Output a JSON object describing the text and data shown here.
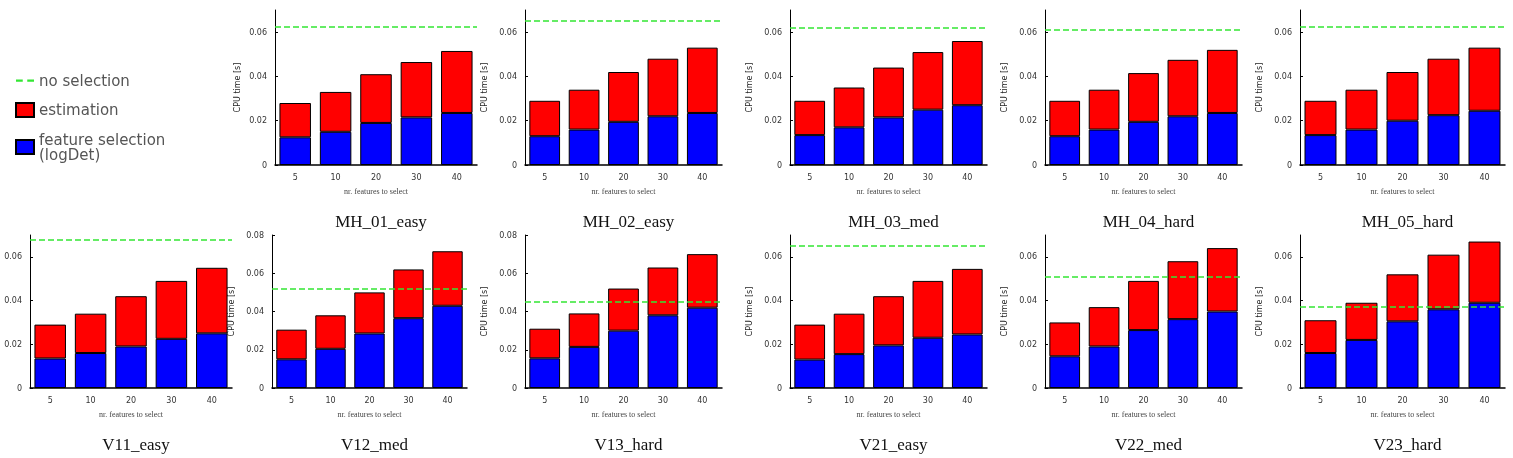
{
  "chart_data": [
    {
      "type": "bar",
      "title": "MH_01_easy",
      "xlabel": "nr. features to select",
      "ylabel": "CPU time [s]",
      "categories": [
        "5",
        "10",
        "20",
        "30",
        "40"
      ],
      "stacked": true,
      "legend": "left",
      "ylim": [
        0,
        0.07
      ],
      "yticks": [
        0,
        0.02,
        0.04,
        0.06
      ],
      "series": [
        {
          "name": "feature selection (logDet)",
          "color": "#0000ff",
          "values": [
            0.0125,
            0.015,
            0.019,
            0.0215,
            0.0235
          ]
        },
        {
          "name": "estimation",
          "color": "#ff0000",
          "values": [
            0.0155,
            0.018,
            0.022,
            0.025,
            0.028
          ]
        }
      ],
      "ref_lines": [
        {
          "axis": "y",
          "value": 0.0625,
          "label": "no selection",
          "color": "#33e633",
          "line_style": "dashed"
        }
      ]
    },
    {
      "type": "bar",
      "title": "MH_02_easy",
      "xlabel": "nr. features to select",
      "ylabel": "CPU time [s]",
      "categories": [
        "5",
        "10",
        "20",
        "30",
        "40"
      ],
      "stacked": true,
      "ylim": [
        0,
        0.07
      ],
      "yticks": [
        0,
        0.02,
        0.04,
        0.06
      ],
      "series": [
        {
          "color": "#0000ff",
          "values": [
            0.013,
            0.016,
            0.0195,
            0.022,
            0.0235
          ]
        },
        {
          "color": "#ff0000",
          "values": [
            0.016,
            0.018,
            0.0225,
            0.026,
            0.0295
          ]
        }
      ],
      "ref_lines": [
        {
          "axis": "y",
          "value": 0.065,
          "color": "#33e633",
          "line_style": "dashed"
        }
      ]
    },
    {
      "type": "bar",
      "title": "MH_03_med",
      "xlabel": "nr. features to select",
      "ylabel": "CPU time [s]",
      "categories": [
        "5",
        "10",
        "20",
        "30",
        "40"
      ],
      "stacked": true,
      "ylim": [
        0,
        0.07
      ],
      "yticks": [
        0,
        0.02,
        0.04,
        0.06
      ],
      "series": [
        {
          "color": "#0000ff",
          "values": [
            0.0135,
            0.017,
            0.0215,
            0.025,
            0.027
          ]
        },
        {
          "color": "#ff0000",
          "values": [
            0.0155,
            0.018,
            0.0225,
            0.026,
            0.029
          ]
        }
      ],
      "ref_lines": [
        {
          "axis": "y",
          "value": 0.062,
          "color": "#33e633",
          "line_style": "dashed"
        }
      ]
    },
    {
      "type": "bar",
      "title": "MH_04_hard",
      "xlabel": "nr. features to select",
      "ylabel": "CPU time [s]",
      "categories": [
        "5",
        "10",
        "20",
        "30",
        "40"
      ],
      "stacked": true,
      "ylim": [
        0,
        0.07
      ],
      "yticks": [
        0,
        0.02,
        0.04,
        0.06
      ],
      "series": [
        {
          "color": "#0000ff",
          "values": [
            0.013,
            0.016,
            0.0195,
            0.022,
            0.0235
          ]
        },
        {
          "color": "#ff0000",
          "values": [
            0.016,
            0.018,
            0.022,
            0.0255,
            0.0285
          ]
        }
      ],
      "ref_lines": [
        {
          "axis": "y",
          "value": 0.061,
          "color": "#33e633",
          "line_style": "dashed"
        }
      ]
    },
    {
      "type": "bar",
      "title": "MH_05_hard",
      "xlabel": "nr. features to select",
      "ylabel": "CPU time [s]",
      "categories": [
        "5",
        "10",
        "20",
        "30",
        "40"
      ],
      "stacked": true,
      "ylim": [
        0,
        0.07
      ],
      "yticks": [
        0,
        0.02,
        0.04,
        0.06
      ],
      "series": [
        {
          "color": "#0000ff",
          "values": [
            0.0135,
            0.016,
            0.02,
            0.0225,
            0.0245
          ]
        },
        {
          "color": "#ff0000",
          "values": [
            0.0155,
            0.018,
            0.022,
            0.0255,
            0.0285
          ]
        }
      ],
      "ref_lines": [
        {
          "axis": "y",
          "value": 0.0625,
          "color": "#33e633",
          "line_style": "dashed"
        }
      ]
    },
    {
      "type": "bar",
      "title": "V11_easy",
      "xlabel": "nr. features to select",
      "categories": [
        "5",
        "10",
        "20",
        "30",
        "40"
      ],
      "stacked": true,
      "ylim": [
        0,
        0.07
      ],
      "yticks": [
        0,
        0.02,
        0.04,
        0.06
      ],
      "series": [
        {
          "color": "#0000ff",
          "values": [
            0.0135,
            0.016,
            0.019,
            0.0225,
            0.025
          ]
        },
        {
          "color": "#ff0000",
          "values": [
            0.0155,
            0.018,
            0.023,
            0.0265,
            0.03
          ]
        }
      ],
      "ref_lines": [
        {
          "axis": "y",
          "value": 0.068,
          "color": "#33e633",
          "line_style": "dashed"
        }
      ]
    },
    {
      "type": "bar",
      "title": "V12_med",
      "xlabel": "nr. features to select",
      "ylabel": "CPU time [s]",
      "categories": [
        "5",
        "10",
        "20",
        "30",
        "40"
      ],
      "stacked": true,
      "ylim": [
        0,
        0.08
      ],
      "yticks": [
        0,
        0.02,
        0.04,
        0.06,
        0.08
      ],
      "series": [
        {
          "color": "#0000ff",
          "values": [
            0.015,
            0.0205,
            0.0285,
            0.0365,
            0.043
          ]
        },
        {
          "color": "#ff0000",
          "values": [
            0.0155,
            0.0175,
            0.0215,
            0.0255,
            0.0285
          ]
        }
      ],
      "ref_lines": [
        {
          "axis": "y",
          "value": 0.052,
          "color": "#33e633",
          "line_style": "dashed"
        }
      ]
    },
    {
      "type": "bar",
      "title": "V13_hard",
      "xlabel": "nr. features to select",
      "ylabel": "CPU time [s]",
      "categories": [
        "5",
        "10",
        "20",
        "30",
        "40"
      ],
      "stacked": true,
      "ylim": [
        0,
        0.08
      ],
      "yticks": [
        0,
        0.02,
        0.04,
        0.06,
        0.08
      ],
      "series": [
        {
          "color": "#0000ff",
          "values": [
            0.0155,
            0.0215,
            0.03,
            0.038,
            0.042
          ]
        },
        {
          "color": "#ff0000",
          "values": [
            0.0155,
            0.0175,
            0.022,
            0.025,
            0.028
          ]
        }
      ],
      "ref_lines": [
        {
          "axis": "y",
          "value": 0.045,
          "color": "#33e633",
          "line_style": "dashed"
        }
      ]
    },
    {
      "type": "bar",
      "title": "V21_easy",
      "xlabel": "nr. features to select",
      "ylabel": "CPU time [s]",
      "categories": [
        "5",
        "10",
        "20",
        "30",
        "40"
      ],
      "stacked": true,
      "ylim": [
        0,
        0.07
      ],
      "yticks": [
        0,
        0.02,
        0.04,
        0.06
      ],
      "series": [
        {
          "color": "#0000ff",
          "values": [
            0.013,
            0.0155,
            0.0195,
            0.023,
            0.0245
          ]
        },
        {
          "color": "#ff0000",
          "values": [
            0.016,
            0.0185,
            0.0225,
            0.026,
            0.03
          ]
        }
      ],
      "ref_lines": [
        {
          "axis": "y",
          "value": 0.065,
          "color": "#33e633",
          "line_style": "dashed"
        }
      ]
    },
    {
      "type": "bar",
      "title": "V22_med",
      "xlabel": "nr. features to select",
      "ylabel": "CPU time [s]",
      "categories": [
        "5",
        "10",
        "20",
        "30",
        "40"
      ],
      "stacked": true,
      "ylim": [
        0,
        0.07
      ],
      "yticks": [
        0,
        0.02,
        0.04,
        0.06
      ],
      "series": [
        {
          "color": "#0000ff",
          "values": [
            0.0145,
            0.019,
            0.0265,
            0.0315,
            0.035
          ]
        },
        {
          "color": "#ff0000",
          "values": [
            0.0155,
            0.018,
            0.0225,
            0.0265,
            0.029
          ]
        }
      ],
      "ref_lines": [
        {
          "axis": "y",
          "value": 0.051,
          "color": "#33e633",
          "line_style": "dashed"
        }
      ]
    },
    {
      "type": "bar",
      "title": "V23_hard",
      "xlabel": "nr. features to select",
      "ylabel": "CPU time [s]",
      "categories": [
        "5",
        "10",
        "20",
        "30",
        "40"
      ],
      "stacked": true,
      "ylim": [
        0,
        0.07
      ],
      "yticks": [
        0,
        0.02,
        0.04,
        0.06
      ],
      "series": [
        {
          "color": "#0000ff",
          "values": [
            0.016,
            0.022,
            0.0305,
            0.036,
            0.039
          ]
        },
        {
          "color": "#ff0000",
          "values": [
            0.015,
            0.017,
            0.0215,
            0.025,
            0.028
          ]
        }
      ],
      "ref_lines": [
        {
          "axis": "y",
          "value": 0.037,
          "color": "#33e633",
          "line_style": "dashed"
        }
      ]
    }
  ]
}
